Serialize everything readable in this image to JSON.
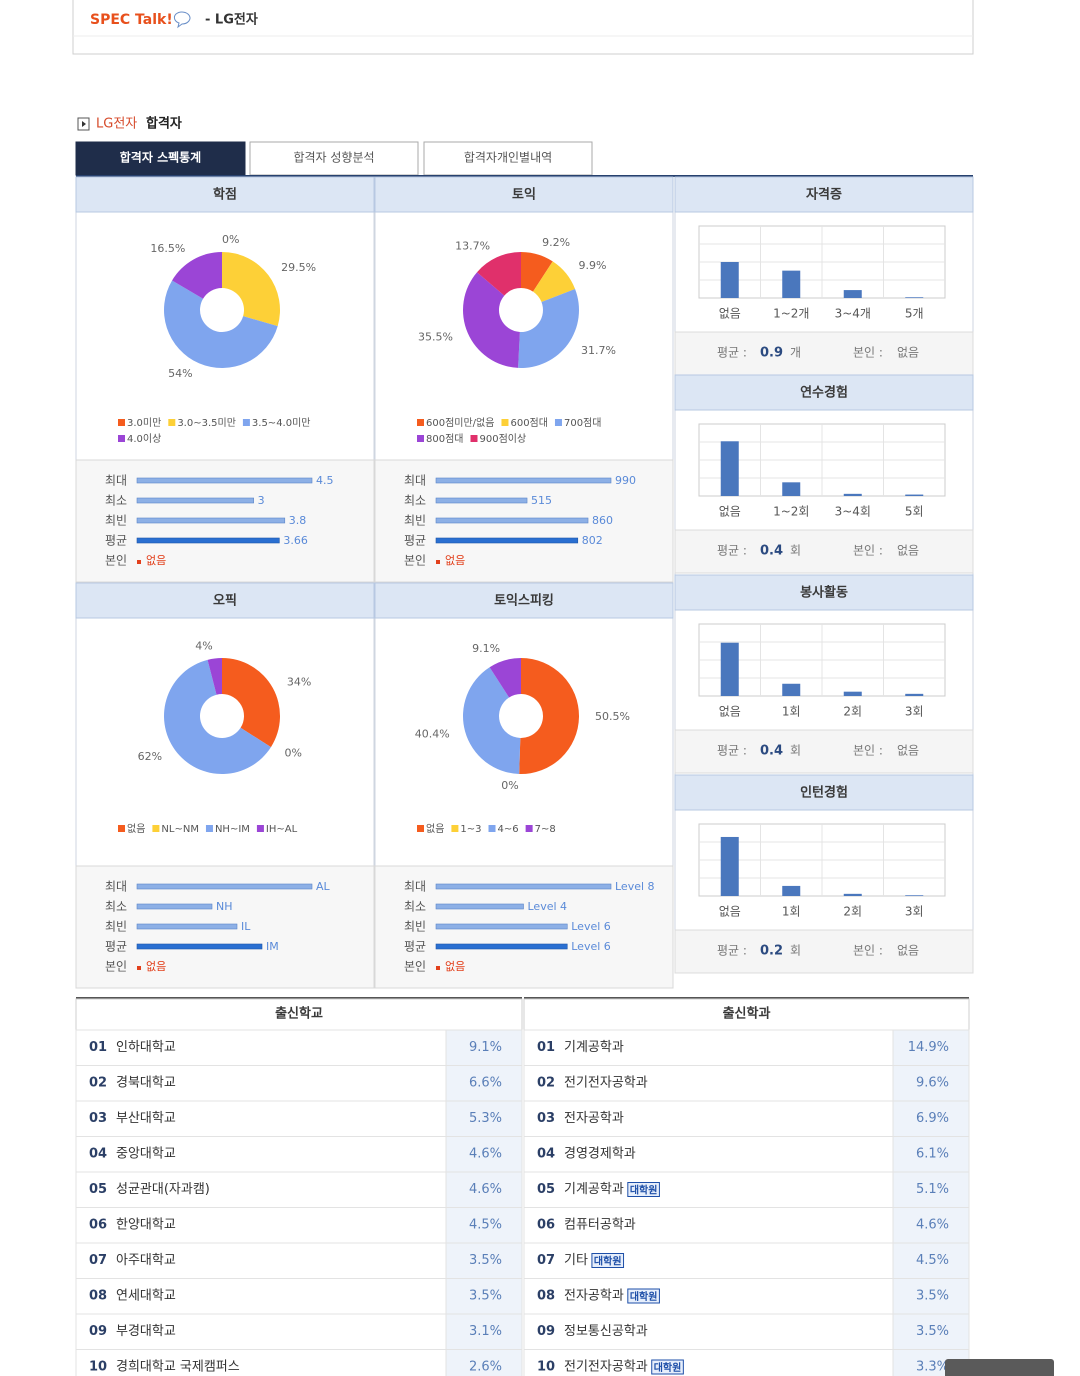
{
  "header": {
    "brand": "SPEC Talk!",
    "company": "- LG전자"
  },
  "section": {
    "company": "LG전자",
    "label": "합격자"
  },
  "tabs": [
    "합격자 스펙통계",
    "합격자 성향분석",
    "합격자개인별내역"
  ],
  "donut_panels": [
    {
      "title": "학점",
      "slices": [
        {
          "name": "3.0미만",
          "value": 0,
          "value_label": "0%",
          "color": "#f55c1e"
        },
        {
          "name": "3.0~3.5미만",
          "value": 29.5,
          "value_label": "29.5%",
          "color": "#fdd037"
        },
        {
          "name": "3.5~4.0미만",
          "value": 54,
          "value_label": "54%",
          "color": "#7fa5ee"
        },
        {
          "name": "4.0이상",
          "value": 16.5,
          "value_label": "16.5%",
          "color": "#9b45d6"
        }
      ],
      "stats": [
        {
          "label": "최대",
          "value": 4.5
        },
        {
          "label": "최소",
          "value": 3
        },
        {
          "label": "최빈",
          "value": 3.8
        },
        {
          "label": "평균",
          "value": 3.66
        }
      ],
      "self": {
        "label": "본인",
        "value": "없음"
      }
    },
    {
      "title": "토익",
      "slices": [
        {
          "name": "600점미만/없음",
          "value": 9.2,
          "value_label": "9.2%",
          "color": "#f55c1e"
        },
        {
          "name": "600점대",
          "value": 9.9,
          "value_label": "9.9%",
          "color": "#fdd037"
        },
        {
          "name": "700점대",
          "value": 31.7,
          "value_label": "31.7%",
          "color": "#7fa5ee"
        },
        {
          "name": "800점대",
          "value": 35.5,
          "value_label": "35.5%",
          "color": "#9b45d6"
        },
        {
          "name": "900점이상",
          "value": 13.7,
          "value_label": "13.7%",
          "color": "#e0306b"
        }
      ],
      "stats": [
        {
          "label": "최대",
          "value": 990
        },
        {
          "label": "최소",
          "value": 515
        },
        {
          "label": "최빈",
          "value": 860
        },
        {
          "label": "평균",
          "value": 802
        }
      ],
      "self": {
        "label": "본인",
        "value": "없음"
      }
    },
    {
      "title": "오픽",
      "slices": [
        {
          "name": "없음",
          "value": 34,
          "value_label": "34%",
          "color": "#f55c1e"
        },
        {
          "name": "NL~NM",
          "value": 0,
          "value_label": "0%",
          "color": "#fdd037"
        },
        {
          "name": "NH~IM",
          "value": 62,
          "value_label": "62%",
          "color": "#7fa5ee"
        },
        {
          "name": "IH~AL",
          "value": 4,
          "value_label": "4%",
          "color": "#9b45d6"
        }
      ],
      "stats": [
        {
          "label": "최대",
          "value": 7,
          "value_label": "AL"
        },
        {
          "label": "최소",
          "value": 3,
          "value_label": "NH"
        },
        {
          "label": "최빈",
          "value": 4,
          "value_label": "IL"
        },
        {
          "label": "평균",
          "value": 5,
          "value_label": "IM"
        }
      ],
      "self": {
        "label": "본인",
        "value": "없음"
      }
    },
    {
      "title": "토익스피킹",
      "slices": [
        {
          "name": "없음",
          "value": 50.5,
          "value_label": "50.5%",
          "color": "#f55c1e"
        },
        {
          "name": "1~3",
          "value": 0,
          "value_label": "0%",
          "color": "#fdd037"
        },
        {
          "name": "4~6",
          "value": 40.4,
          "value_label": "40.4%",
          "color": "#7fa5ee"
        },
        {
          "name": "7~8",
          "value": 9.1,
          "value_label": "9.1%",
          "color": "#9b45d6"
        }
      ],
      "stats": [
        {
          "label": "최대",
          "value": 8,
          "value_label": "Level 8"
        },
        {
          "label": "최소",
          "value": 4,
          "value_label": "Level 4"
        },
        {
          "label": "최빈",
          "value": 6,
          "value_label": "Level 6"
        },
        {
          "label": "평균",
          "value": 6,
          "value_label": "Level 6"
        }
      ],
      "self": {
        "label": "본인",
        "value": "없음"
      }
    }
  ],
  "bar_panels": [
    {
      "title": "자격증",
      "categories": [
        "없음",
        "1~2개",
        "3~4개",
        "5개"
      ],
      "values": [
        50,
        38,
        11,
        1
      ],
      "ylim": [
        0,
        100
      ],
      "color": "#4a77bd",
      "average_label": "평균 :",
      "average": 0.9,
      "unit": "개",
      "self_label": "본인 :",
      "self_value": "없음"
    },
    {
      "title": "연수경험",
      "categories": [
        "없음",
        "1~2회",
        "3~4회",
        "5회"
      ],
      "values": [
        76,
        19,
        3,
        2
      ],
      "ylim": [
        0,
        100
      ],
      "color": "#4a77bd",
      "average_label": "평균 :",
      "average": 0.4,
      "unit": "회",
      "self_label": "본인 :",
      "self_value": "없음"
    },
    {
      "title": "봉사활동",
      "categories": [
        "없음",
        "1회",
        "2회",
        "3회"
      ],
      "values": [
        74,
        17,
        6,
        3
      ],
      "ylim": [
        0,
        100
      ],
      "color": "#4a77bd",
      "average_label": "평균 :",
      "average": 0.4,
      "unit": "회",
      "self_label": "본인 :",
      "self_value": "없음"
    },
    {
      "title": "인턴경험",
      "categories": [
        "없음",
        "1회",
        "2회",
        "3회"
      ],
      "values": [
        82,
        14,
        3,
        1
      ],
      "ylim": [
        0,
        100
      ],
      "color": "#4a77bd",
      "average_label": "평균 :",
      "average": 0.2,
      "unit": "회",
      "self_label": "본인 :",
      "self_value": "없음"
    }
  ],
  "tables": [
    {
      "title": "출신학교",
      "rows": [
        {
          "rank": "01",
          "name": "인하대학교",
          "share": "9.1%"
        },
        {
          "rank": "02",
          "name": "경북대학교",
          "share": "6.6%"
        },
        {
          "rank": "03",
          "name": "부산대학교",
          "share": "5.3%"
        },
        {
          "rank": "04",
          "name": "중앙대학교",
          "share": "4.6%"
        },
        {
          "rank": "05",
          "name": "성균관대(자과캠)",
          "share": "4.6%"
        },
        {
          "rank": "06",
          "name": "한양대학교",
          "share": "4.5%"
        },
        {
          "rank": "07",
          "name": "아주대학교",
          "share": "3.5%"
        },
        {
          "rank": "08",
          "name": "연세대학교",
          "share": "3.5%"
        },
        {
          "rank": "09",
          "name": "부경대학교",
          "share": "3.1%"
        },
        {
          "rank": "10",
          "name": "경희대학교 국제캠퍼스",
          "share": "2.6%"
        }
      ]
    },
    {
      "title": "출신학과",
      "rows": [
        {
          "rank": "01",
          "name": "기계공학과",
          "share": "14.9%"
        },
        {
          "rank": "02",
          "name": "전기전자공학과",
          "share": "9.6%"
        },
        {
          "rank": "03",
          "name": "전자공학과",
          "share": "6.9%"
        },
        {
          "rank": "04",
          "name": "경영경제학과",
          "share": "6.1%"
        },
        {
          "rank": "05",
          "name": "기계공학과",
          "badge": "대학원",
          "share": "5.1%"
        },
        {
          "rank": "06",
          "name": "컴퓨터공학과",
          "share": "4.6%"
        },
        {
          "rank": "07",
          "name": "기타",
          "badge": "대학원",
          "share": "4.5%"
        },
        {
          "rank": "08",
          "name": "전자공학과",
          "badge": "대학원",
          "share": "3.5%"
        },
        {
          "rank": "09",
          "name": "정보통신공학과",
          "share": "3.5%"
        },
        {
          "rank": "10",
          "name": "전기전자공학과",
          "badge": "대학원",
          "share": "3.3%"
        }
      ]
    }
  ]
}
